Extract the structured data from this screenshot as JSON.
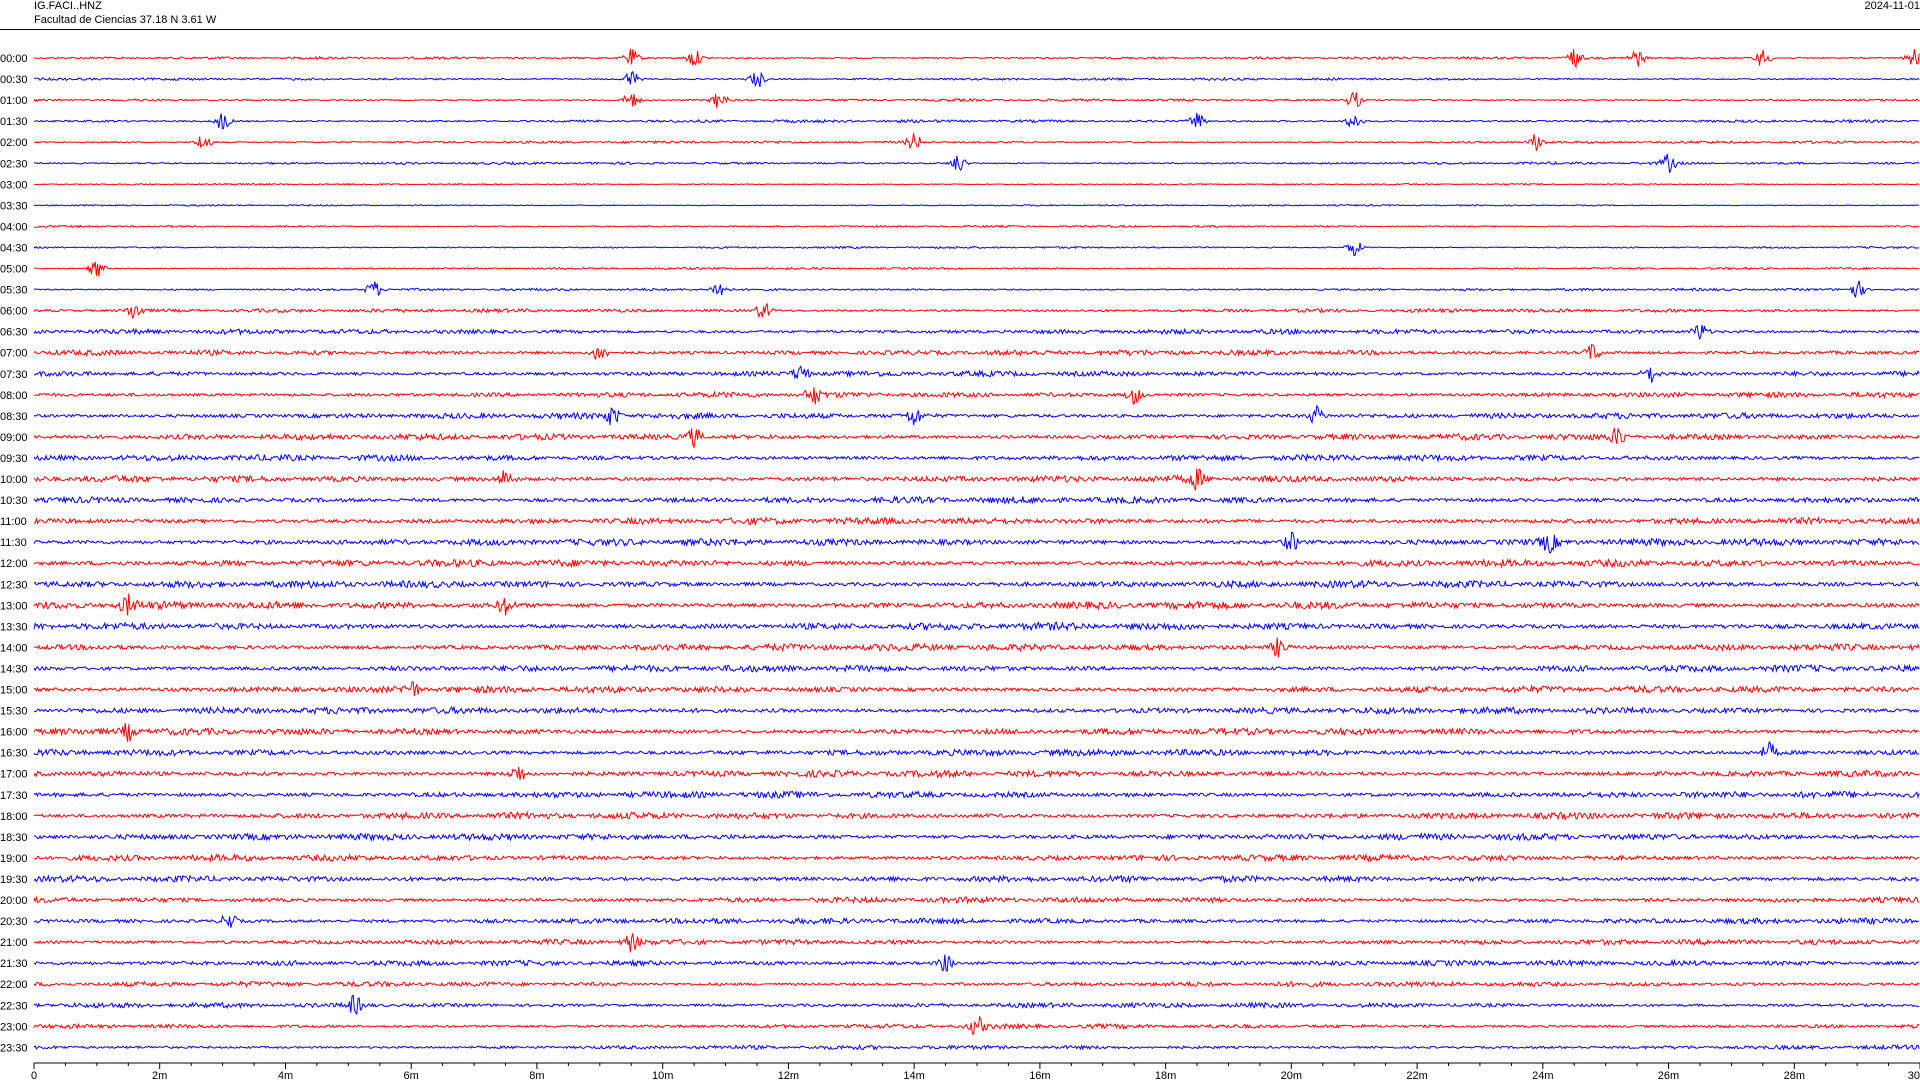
{
  "header": {
    "station": "IG.FACI..HNZ",
    "location": "Facultad de Ciencias  37.18 N 3.61 W",
    "date": "2024-11-01"
  },
  "chart_data": {
    "type": "line",
    "title": "",
    "xlabel": "",
    "ylabel": "",
    "x_unit": "minutes",
    "xlim": [
      0,
      30
    ],
    "x_tick_labels": [
      "0",
      "2m",
      "4m",
      "6m",
      "8m",
      "10m",
      "12m",
      "14m",
      "16m",
      "18m",
      "20m",
      "22m",
      "24m",
      "26m",
      "28m",
      "30"
    ],
    "x_minor_tick_step": 0.5,
    "row_duration_minutes": 30,
    "grid": false,
    "legend": "none",
    "colors": [
      "#ff0000",
      "#0000ff"
    ],
    "row_labels": [
      "00:00",
      "00:30",
      "01:00",
      "01:30",
      "02:00",
      "02:30",
      "03:00",
      "03:30",
      "04:00",
      "04:30",
      "05:00",
      "05:30",
      "06:00",
      "06:30",
      "07:00",
      "07:30",
      "08:00",
      "08:30",
      "09:00",
      "09:30",
      "10:00",
      "10:30",
      "11:00",
      "11:30",
      "12:00",
      "12:30",
      "13:00",
      "13:30",
      "14:00",
      "14:30",
      "15:00",
      "15:30",
      "16:00",
      "16:30",
      "17:00",
      "17:30",
      "18:00",
      "18:30",
      "19:00",
      "19:30",
      "20:00",
      "20:30",
      "21:00",
      "21:30",
      "22:00",
      "22:30",
      "23:00",
      "23:30"
    ],
    "noise_level": [
      0.6,
      0.6,
      0.6,
      0.7,
      0.6,
      0.6,
      0.4,
      0.4,
      0.5,
      0.5,
      0.5,
      0.6,
      0.9,
      1.2,
      1.3,
      1.3,
      1.3,
      1.4,
      1.5,
      1.5,
      1.6,
      1.6,
      1.6,
      1.7,
      1.7,
      1.7,
      1.8,
      1.8,
      1.7,
      1.6,
      1.6,
      1.6,
      1.6,
      1.6,
      1.6,
      1.6,
      1.6,
      1.6,
      1.5,
      1.5,
      1.4,
      1.4,
      1.3,
      1.3,
      1.2,
      1.2,
      1.1,
      1.0
    ],
    "bursts": [
      {
        "row": "00:00",
        "minutes": [
          9.5,
          10.5,
          24.5,
          25.5,
          27.5,
          29.9
        ]
      },
      {
        "row": "00:30",
        "minutes": [
          9.5,
          11.5
        ]
      },
      {
        "row": "01:00",
        "minutes": [
          9.5,
          10.9,
          21.0
        ]
      },
      {
        "row": "01:30",
        "minutes": [
          3.0,
          21.0,
          18.5
        ]
      },
      {
        "row": "02:00",
        "minutes": [
          2.7,
          14.0,
          23.9
        ]
      },
      {
        "row": "02:30",
        "minutes": [
          14.7,
          26.0
        ]
      },
      {
        "row": "04:30",
        "minutes": [
          21.0
        ]
      },
      {
        "row": "05:00",
        "minutes": [
          1.0
        ]
      },
      {
        "row": "05:30",
        "minutes": [
          5.4,
          10.9,
          29.0
        ]
      },
      {
        "row": "06:00",
        "minutes": [
          1.6,
          11.6
        ]
      },
      {
        "row": "06:30",
        "minutes": [
          26.5
        ]
      },
      {
        "row": "07:00",
        "minutes": [
          9.0,
          24.8
        ]
      },
      {
        "row": "07:30",
        "minutes": [
          12.2,
          25.7
        ]
      },
      {
        "row": "08:00",
        "minutes": [
          12.4,
          17.5
        ]
      },
      {
        "row": "08:30",
        "minutes": [
          9.2,
          14.0,
          20.4
        ]
      },
      {
        "row": "09:00",
        "minutes": [
          10.5,
          25.2
        ]
      },
      {
        "row": "10:00",
        "minutes": [
          7.5,
          18.5
        ]
      },
      {
        "row": "11:30",
        "minutes": [
          20.0,
          24.1
        ]
      },
      {
        "row": "13:00",
        "minutes": [
          1.5,
          7.5
        ]
      },
      {
        "row": "14:00",
        "minutes": [
          19.8
        ]
      },
      {
        "row": "15:00",
        "minutes": [
          6.0
        ]
      },
      {
        "row": "16:00",
        "minutes": [
          1.5
        ]
      },
      {
        "row": "16:30",
        "minutes": [
          27.6
        ]
      },
      {
        "row": "17:00",
        "minutes": [
          7.7
        ]
      },
      {
        "row": "20:30",
        "minutes": [
          3.1
        ]
      },
      {
        "row": "21:00",
        "minutes": [
          9.5
        ]
      },
      {
        "row": "21:30",
        "minutes": [
          14.5
        ]
      },
      {
        "row": "22:30",
        "minutes": [
          5.1
        ]
      },
      {
        "row": "23:00",
        "minutes": [
          15.0
        ]
      }
    ]
  }
}
